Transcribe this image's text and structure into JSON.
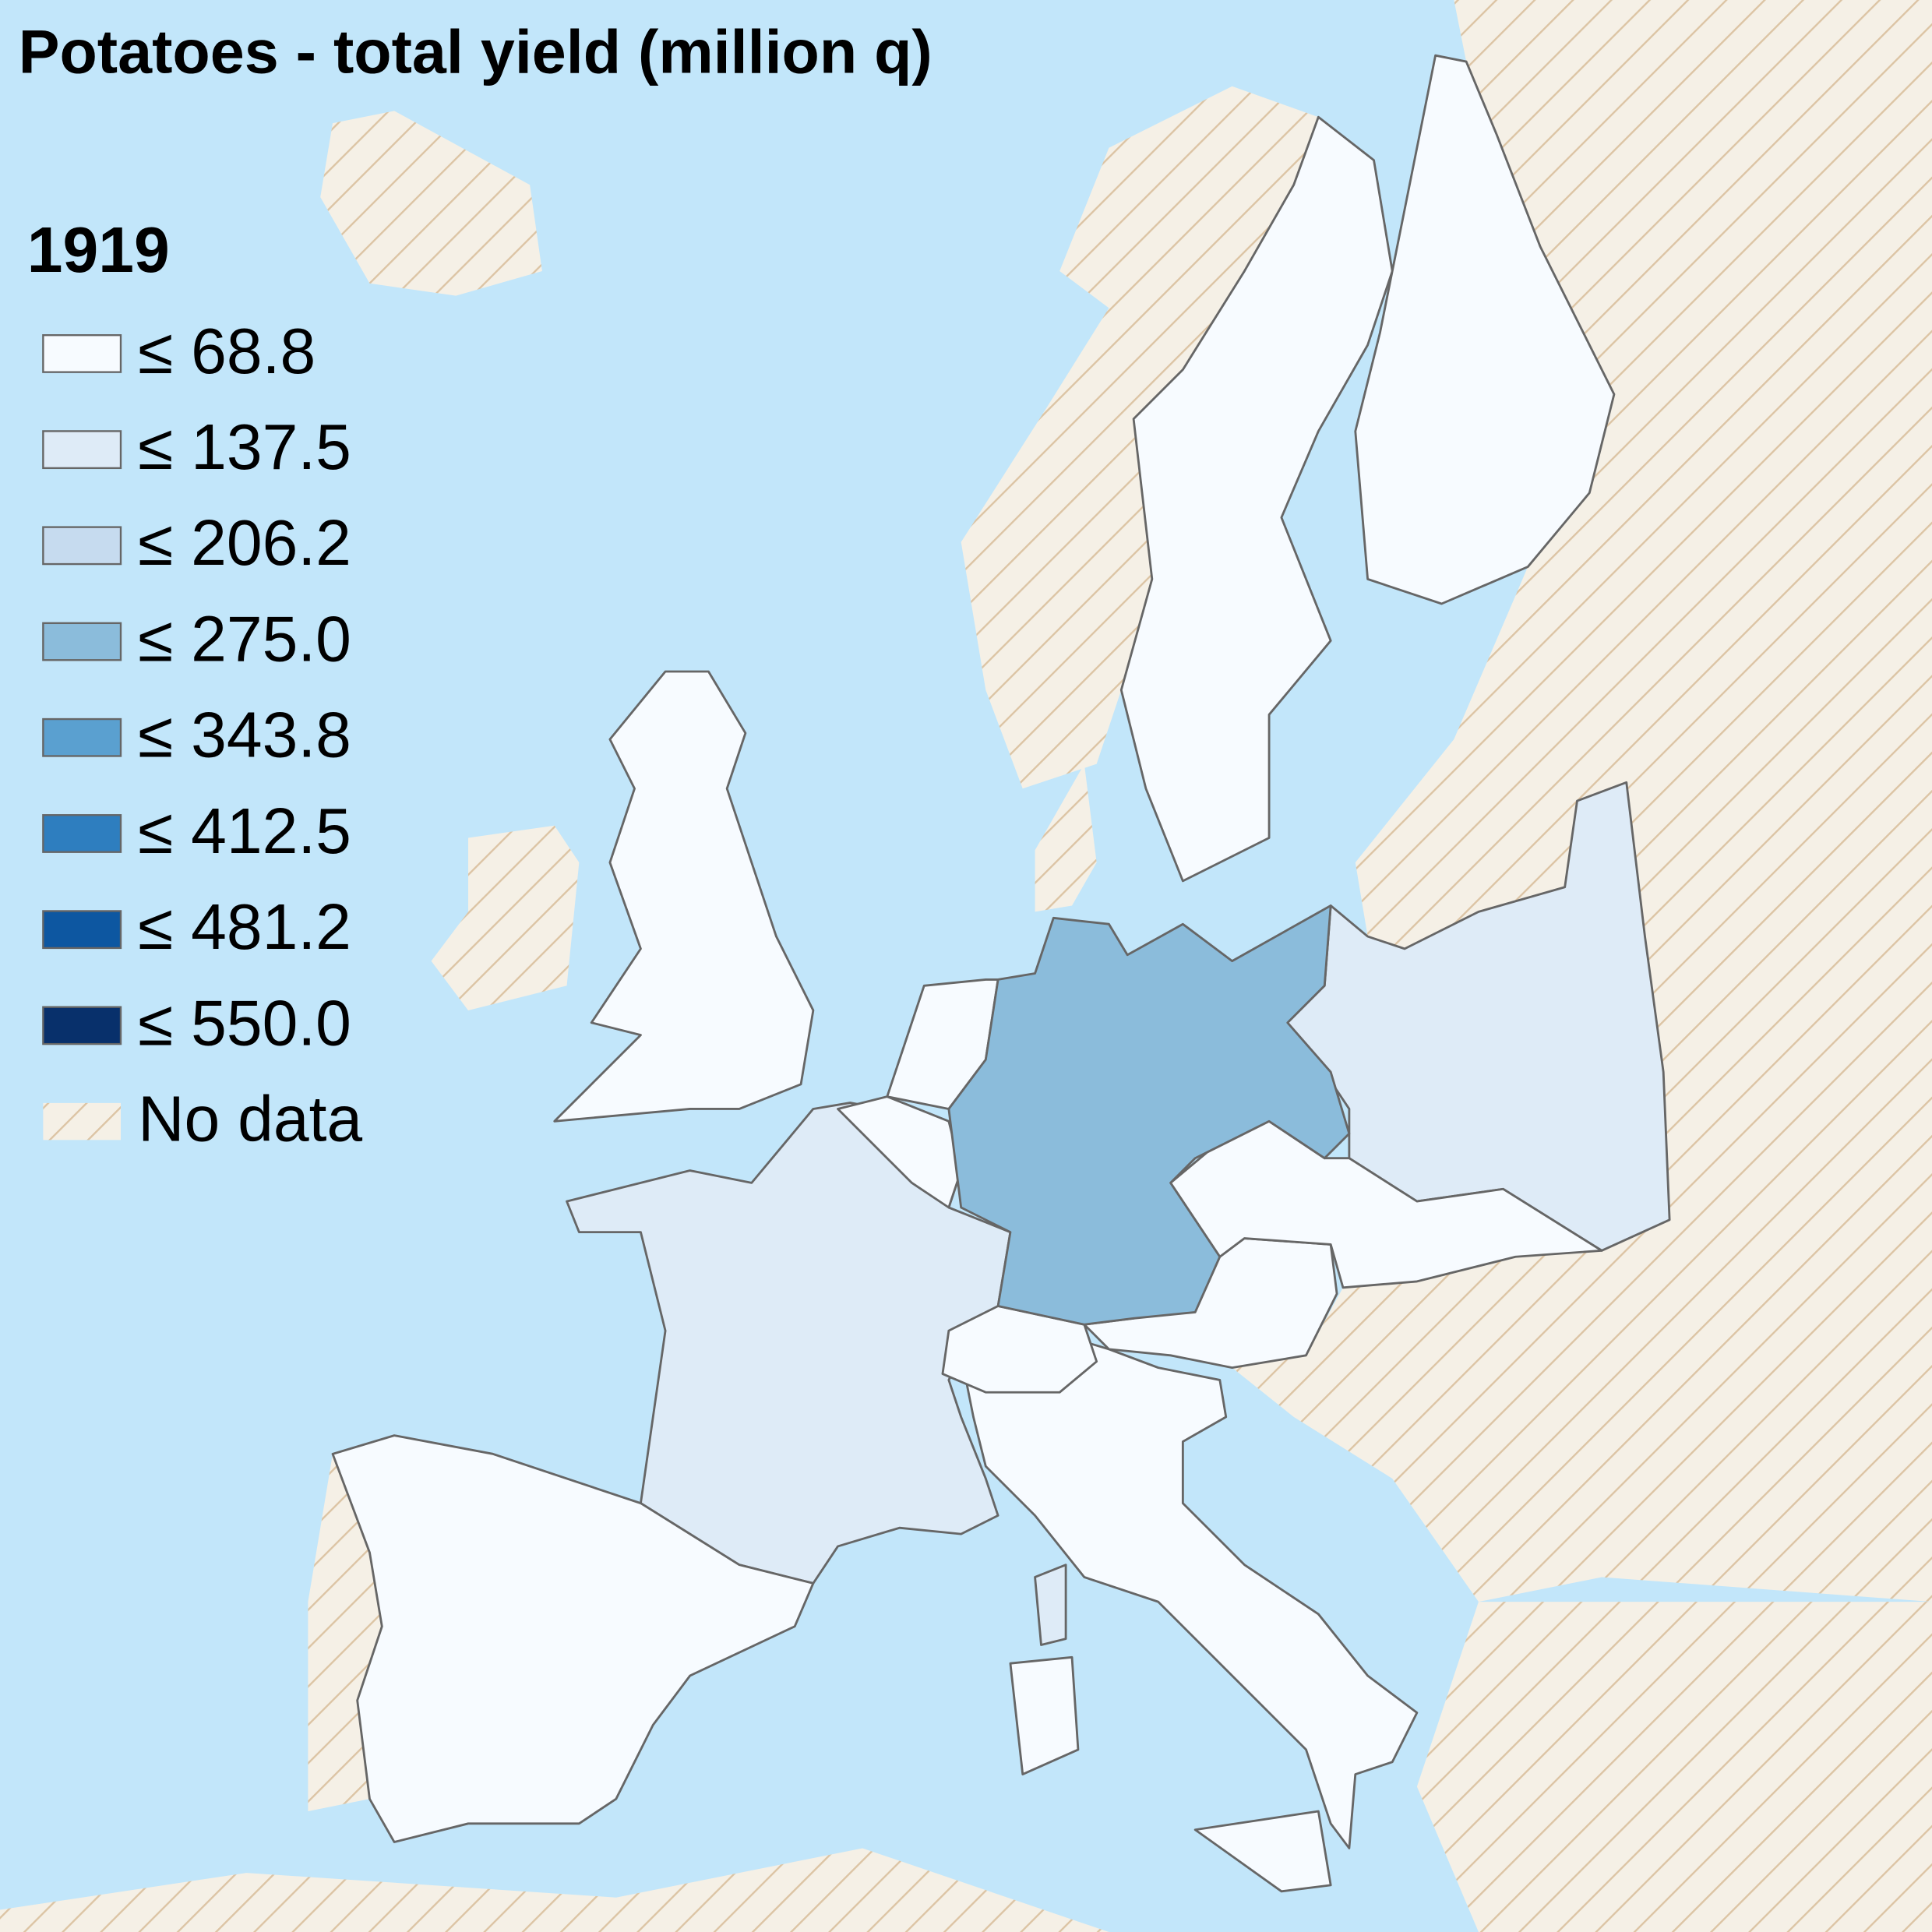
{
  "map": {
    "title": "Potatoes - total yield (million q)",
    "legend_title": "1919",
    "legend": [
      {
        "label": "≤ 68.8",
        "color": "#f7fbff"
      },
      {
        "label": "≤ 137.5",
        "color": "#deebf7"
      },
      {
        "label": "≤ 206.2",
        "color": "#c6dbef"
      },
      {
        "label": "≤ 275.0",
        "color": "#8bbcdb"
      },
      {
        "label": "≤ 343.8",
        "color": "#5aa0d0"
      },
      {
        "label": "≤ 412.5",
        "color": "#2e7ebf"
      },
      {
        "label": "≤ 481.2",
        "color": "#0d57a1"
      },
      {
        "label": "≤ 550.0",
        "color": "#08306b"
      }
    ],
    "no_data": {
      "label": "No data"
    }
  }
}
